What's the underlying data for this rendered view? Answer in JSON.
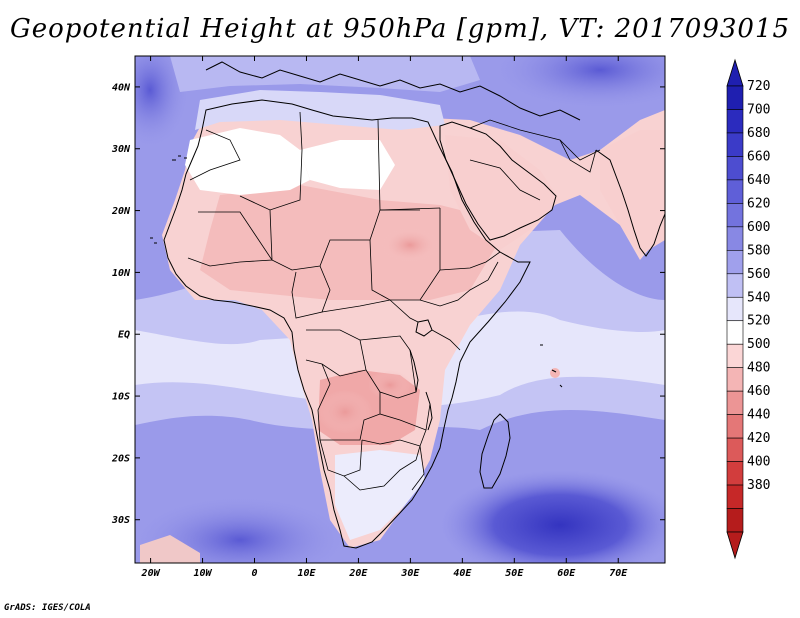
{
  "title": "Geopotential Height at 950hPa [gpm], VT: 2017093015",
  "credit": "GrADS: IGES/COLA",
  "map": {
    "lon_range": [
      -23,
      79
    ],
    "lat_range": [
      -37,
      45
    ],
    "lon_ticks": [
      {
        "value": -20,
        "label": "20W"
      },
      {
        "value": -10,
        "label": "10W"
      },
      {
        "value": 0,
        "label": "0"
      },
      {
        "value": 10,
        "label": "10E"
      },
      {
        "value": 20,
        "label": "20E"
      },
      {
        "value": 30,
        "label": "30E"
      },
      {
        "value": 40,
        "label": "40E"
      },
      {
        "value": 50,
        "label": "50E"
      },
      {
        "value": 60,
        "label": "60E"
      },
      {
        "value": 70,
        "label": "70E"
      }
    ],
    "lat_ticks": [
      {
        "value": 40,
        "label": "40N"
      },
      {
        "value": 30,
        "label": "30N"
      },
      {
        "value": 20,
        "label": "20N"
      },
      {
        "value": 10,
        "label": "10N"
      },
      {
        "value": 0,
        "label": "EQ"
      },
      {
        "value": -10,
        "label": "10S"
      },
      {
        "value": -20,
        "label": "20S"
      },
      {
        "value": -30,
        "label": "30S"
      }
    ]
  },
  "colorbar": {
    "labels": [
      "720",
      "700",
      "680",
      "660",
      "640",
      "620",
      "600",
      "580",
      "560",
      "540",
      "520",
      "500",
      "480",
      "460",
      "440",
      "420",
      "400",
      "380"
    ],
    "colors": [
      "#1f1fb0",
      "#2b2bbe",
      "#3b3bc8",
      "#4d4dd0",
      "#5f5fd8",
      "#7373de",
      "#8888e4",
      "#a0a0ec",
      "#c0c0f4",
      "#e6e6fb",
      "#ffffff",
      "#fbd6d6",
      "#f4b5b5",
      "#ec9595",
      "#e47777",
      "#dc5a5a",
      "#d23d3d",
      "#c62828",
      "#b51c1c"
    ],
    "min_color": "#b51c1c",
    "max_color": "#1f1fb0"
  },
  "colors": {
    "ocean_far": "#8c8ce6",
    "ocean_near": "#b4b4f0",
    "land_warm": "#f8d2d2",
    "land_hot": "#f0a8a8",
    "land_cool": "#e8e8fb",
    "coast": "#000000"
  }
}
